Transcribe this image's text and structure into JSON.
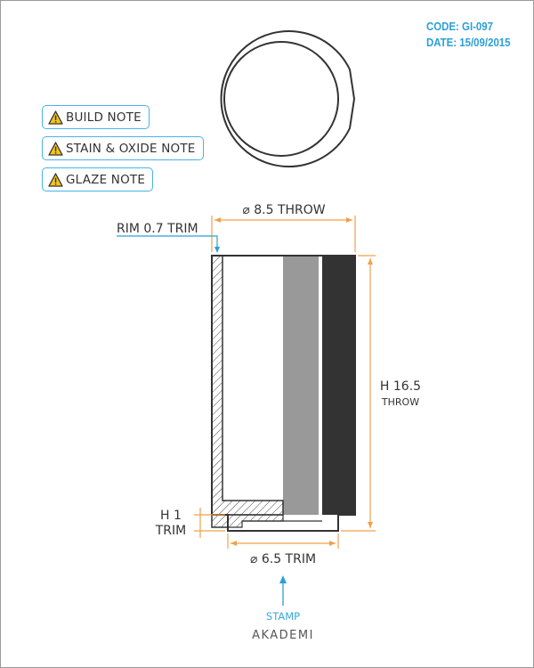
{
  "header": {
    "code": "CODE: GI-097",
    "date": "DATE: 15/09/2015"
  },
  "notes": [
    {
      "label": "BUILD NOTE",
      "icon": "warning-icon"
    },
    {
      "label": "STAIN & OXIDE NOTE",
      "icon": "warning-icon"
    },
    {
      "label": "GLAZE NOTE",
      "icon": "warning-icon"
    }
  ],
  "dimensions": {
    "top_diameter": "⌀ 8.5 THROW",
    "rim": "RIM 0.7 TRIM",
    "height_value": "H 16.5",
    "height_method": "THROW",
    "foot_height_value": "H 1",
    "foot_height_method": "TRIM",
    "foot_diameter": "⌀ 6.5 TRIM"
  },
  "stamp": {
    "label": "STAMP",
    "name": "AKADEMI"
  },
  "colors": {
    "dimension_line": "#f0a04b",
    "accent_blue": "#2b9fd9",
    "outline": "#333333",
    "stain_gray": "#999999",
    "glaze_dark": "#333333"
  }
}
